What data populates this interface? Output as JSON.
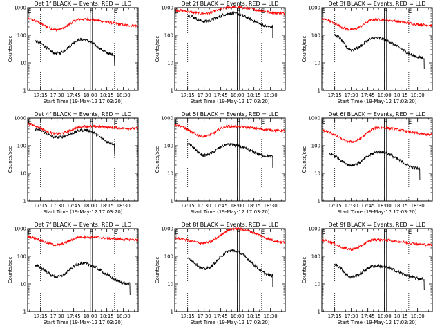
{
  "chart_data": {
    "type": "line",
    "layout": "3x3 grid",
    "yscale": "log",
    "ylim": [
      1,
      1000
    ],
    "y_ticks": [
      "1",
      "10",
      "100",
      "1000"
    ],
    "ylabel": "Counts/sec",
    "xlabel": "Start Time (19-May-12 17:03:20)",
    "x_ticks": [
      "17:15",
      "17:30",
      "17:45",
      "18:00",
      "18:15",
      "18:30"
    ],
    "xlim": [
      "17:03:20",
      "18:43:20"
    ],
    "grid": "dotted vertical lines at 17:15, 18:00 and 18:22",
    "vertical_lines": [
      "18:00",
      "18:02"
    ],
    "markers": [
      "E",
      "F",
      "E"
    ],
    "colors": {
      "events": "#000000",
      "lld": "#ff0000"
    },
    "panels": [
      {
        "title": "Det 1f BLACK = Events, RED = LLD",
        "lld": {
          "start": 380,
          "hump_time": "17:52",
          "hump": 380,
          "trough_time": "17:30",
          "trough": 160,
          "end": 220
        },
        "events": {
          "start": 60,
          "hump_time": "17:52",
          "hump": 70,
          "trough_time": "17:30",
          "trough": 22,
          "end": 20,
          "range": [
            "17:10",
            "18:22"
          ]
        }
      },
      {
        "title": "Det 2f BLACK = Events, RED = LLD",
        "lld": {
          "start": 800,
          "hump_time": "17:55",
          "hump": 1050,
          "trough_time": "17:30",
          "trough": 620,
          "end": 620
        },
        "events": {
          "start": 520,
          "hump_time": "17:55",
          "hump": 620,
          "trough_time": "17:30",
          "trough": 320,
          "end": 200,
          "range": [
            "17:15",
            "18:32"
          ]
        }
      },
      {
        "title": "Det 3f BLACK = Events, RED = LLD",
        "lld": {
          "start": 380,
          "hump_time": "17:52",
          "hump": 370,
          "trough_time": "17:30",
          "trough": 160,
          "end": 230
        },
        "events": {
          "start": 100,
          "hump_time": "17:52",
          "hump": 80,
          "trough_time": "17:30",
          "trough": 30,
          "end": 15,
          "range": [
            "17:15",
            "18:36"
          ]
        }
      },
      {
        "title": "Det 4f BLACK = Events, RED = LLD",
        "lld": {
          "start": 600,
          "hump_time": "17:55",
          "hump": 500,
          "trough_time": "17:30",
          "trough": 270,
          "end": 420
        },
        "events": {
          "start": 400,
          "hump_time": "17:55",
          "hump": 370,
          "trough_time": "17:30",
          "trough": 200,
          "end": 120,
          "range": [
            "17:10",
            "18:22"
          ]
        }
      },
      {
        "title": "Det 5f BLACK = Events, RED = LLD",
        "lld": {
          "start": 550,
          "hump_time": "17:52",
          "hump": 500,
          "trough_time": "17:30",
          "trough": 220,
          "end": 350
        },
        "events": {
          "start": 110,
          "hump_time": "17:52",
          "hump": 110,
          "trough_time": "17:30",
          "trough": 45,
          "end": 40,
          "range": [
            "17:15",
            "18:32"
          ]
        }
      },
      {
        "title": "Det 6f BLACK = Events, RED = LLD",
        "lld": {
          "start": 350,
          "hump_time": "17:55",
          "hump": 450,
          "trough_time": "17:30",
          "trough": 140,
          "end": 250
        },
        "events": {
          "start": 50,
          "hump_time": "17:55",
          "hump": 60,
          "trough_time": "17:30",
          "trough": 20,
          "end": 15,
          "range": [
            "17:10",
            "18:32"
          ]
        }
      },
      {
        "title": "Det 7f BLACK = Events, RED = LLD",
        "lld": {
          "start": 500,
          "hump_time": "17:52",
          "hump": 500,
          "trough_time": "17:30",
          "trough": 260,
          "end": 400
        },
        "events": {
          "start": 45,
          "hump_time": "17:52",
          "hump": 55,
          "trough_time": "17:30",
          "trough": 18,
          "end": 10,
          "range": [
            "17:10",
            "18:36"
          ]
        }
      },
      {
        "title": "Det 8f BLACK = Events, RED = LLD",
        "lld": {
          "start": 450,
          "hump_time": "17:58",
          "hump": 1000,
          "trough_time": "17:30",
          "trough": 300,
          "end": 320
        },
        "events": {
          "start": 80,
          "hump_time": "17:55",
          "hump": 160,
          "trough_time": "17:30",
          "trough": 35,
          "end": 20,
          "range": [
            "17:15",
            "18:32"
          ]
        }
      },
      {
        "title": "Det 9f BLACK = Events, RED = LLD",
        "lld": {
          "start": 380,
          "hump_time": "17:52",
          "hump": 400,
          "trough_time": "17:30",
          "trough": 180,
          "end": 260
        },
        "events": {
          "start": 50,
          "hump_time": "17:52",
          "hump": 45,
          "trough_time": "17:30",
          "trough": 18,
          "end": 15,
          "range": [
            "17:15",
            "18:36"
          ]
        }
      }
    ]
  }
}
